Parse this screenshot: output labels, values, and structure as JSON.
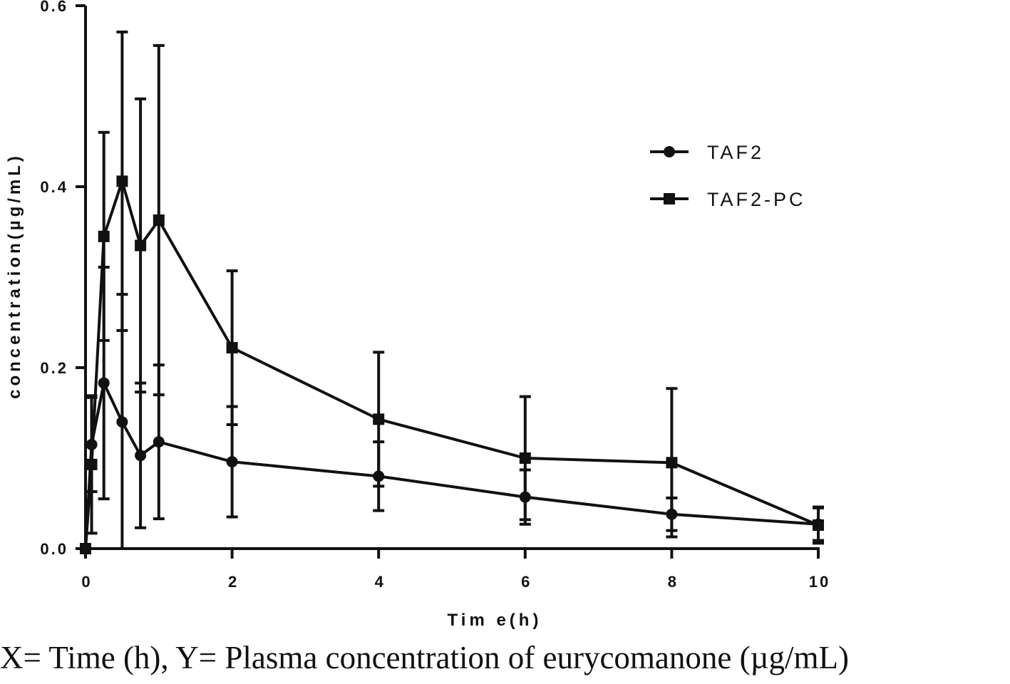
{
  "caption": "X= Time (h), Y= Plasma concentration of eurycomanone (µg/mL)",
  "chart_data": {
    "type": "line",
    "xlabel": "Tim e(h)",
    "ylabel": "concentration(µg/mL)",
    "xlim": [
      0,
      10
    ],
    "ylim": [
      0,
      0.6
    ],
    "xticks": [
      0,
      2,
      4,
      6,
      8,
      10
    ],
    "xtick_labels": [
      "0",
      "2",
      "4",
      "6",
      "8",
      "10"
    ],
    "yticks": [
      0,
      0.2,
      0.4,
      0.6
    ],
    "ytick_labels": [
      "0.0",
      "0.2",
      "0.4",
      "0.6"
    ],
    "grid": false,
    "legend_position": "top-right",
    "series": [
      {
        "name": "TAF2",
        "marker": "circle",
        "color": "#111111",
        "x": [
          0,
          0.083,
          0.25,
          0.5,
          0.75,
          1,
          2,
          4,
          6,
          8,
          10
        ],
        "y": [
          0.0,
          0.115,
          0.183,
          0.14,
          0.103,
          0.118,
          0.096,
          0.08,
          0.057,
          0.038,
          0.027
        ],
        "yerr": [
          0,
          0.052,
          0.128,
          0.141,
          0.08,
          0.085,
          0.061,
          0.038,
          0.03,
          0.018,
          0.018
        ]
      },
      {
        "name": "TAF2-PC",
        "marker": "square",
        "color": "#111111",
        "x": [
          0,
          0.083,
          0.25,
          0.5,
          0.75,
          1,
          2,
          4,
          6,
          8,
          10
        ],
        "y": [
          0.0,
          0.093,
          0.345,
          0.406,
          0.335,
          0.363,
          0.222,
          0.143,
          0.1,
          0.095,
          0.026
        ],
        "yerr": [
          0,
          0.076,
          0.115,
          0.165,
          0.162,
          0.193,
          0.085,
          0.074,
          0.068,
          0.082,
          0.02
        ]
      }
    ]
  }
}
